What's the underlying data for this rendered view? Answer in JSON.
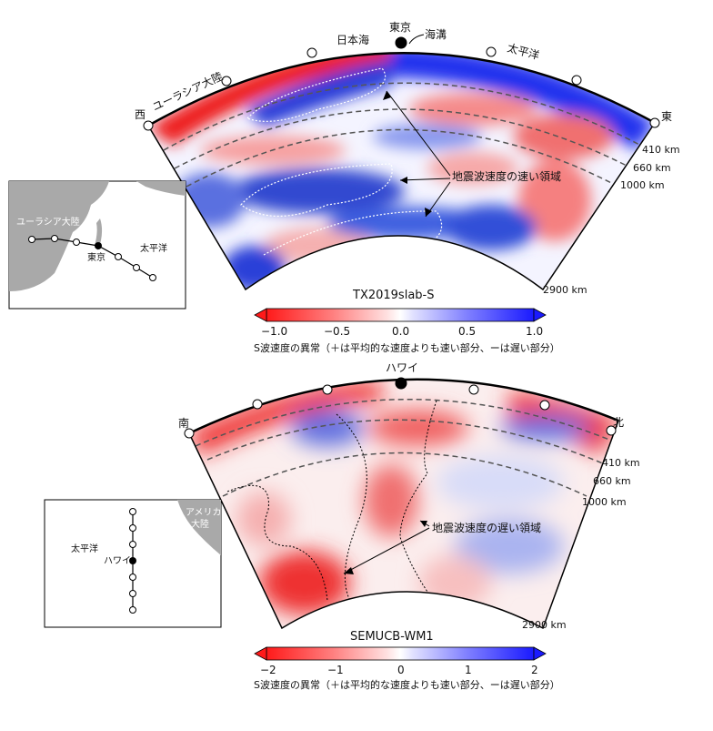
{
  "panel_top": {
    "model_name": "TX2019slab-S",
    "dir_west": "西",
    "dir_east": "東",
    "label_eurasia": "ユーラシア大陸",
    "label_sea_of_japan": "日本海",
    "label_tokyo": "東京",
    "label_trench": "海溝",
    "label_pacific": "太平洋",
    "annotation": "地震波速度の速い領域",
    "depth_410": "410 km",
    "depth_660": "660 km",
    "depth_1000": "1000 km",
    "depth_2900": "2900 km",
    "colorbar": {
      "ticks": [
        "−1.0",
        "−0.5",
        "0.0",
        "0.5",
        "1.0"
      ],
      "caption": "S波速度の異常（＋は平均的な速度よりも速い部分、ーは遅い部分）"
    },
    "inset": {
      "label_eurasia": "ユーラシア大陸",
      "label_tokyo": "東京",
      "label_pacific": "太平洋"
    }
  },
  "panel_bottom": {
    "model_name": "SEMUCB-WM1",
    "dir_south": "南",
    "dir_north": "北",
    "label_hawaii": "ハワイ",
    "annotation": "地震波速度の遅い領域",
    "depth_410": "410 km",
    "depth_660": "660 km",
    "depth_1000": "1000 km",
    "depth_2900": "2900 km",
    "colorbar": {
      "ticks": [
        "−2",
        "−1",
        "0",
        "1",
        "2"
      ],
      "caption": "S波速度の異常（＋は平均的な速度よりも速い部分、ーは遅い部分）"
    },
    "inset": {
      "label_america": "アメリカ",
      "label_continent": "大陸",
      "label_pacific": "太平洋",
      "label_hawaii": "ハワイ"
    }
  },
  "colors": {
    "fast_blue": "#1a1aff",
    "slow_red": "#ff1a1a",
    "neutral": "#ffffff",
    "land_gray": "#a9a9a9"
  }
}
